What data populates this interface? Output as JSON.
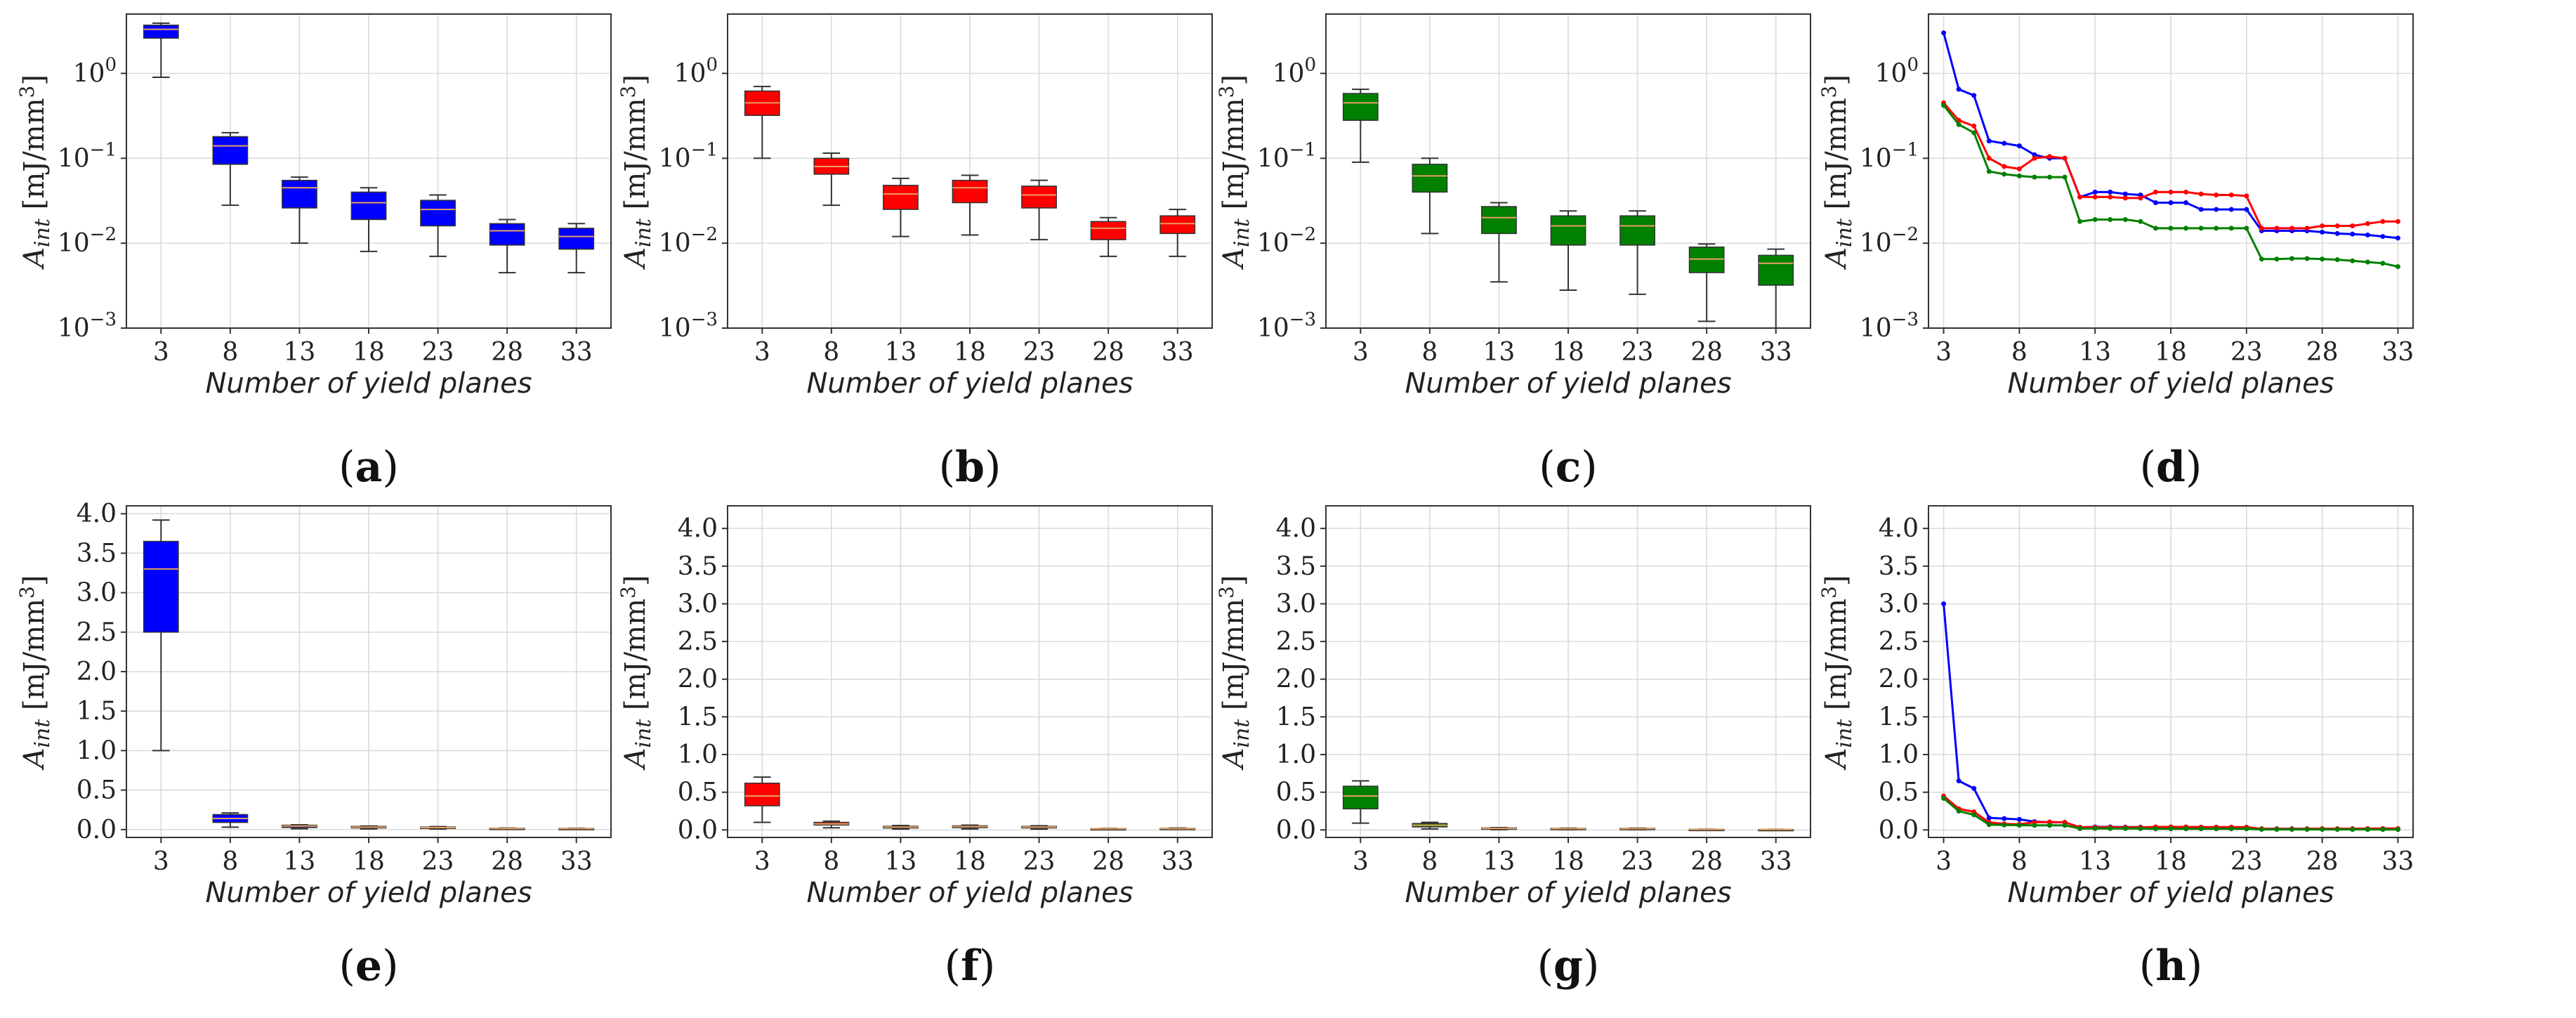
{
  "figure": {
    "captions": [
      "a",
      "b",
      "c",
      "d",
      "e",
      "f",
      "g",
      "h"
    ]
  },
  "chart_data": [
    {
      "id": "a",
      "type": "box",
      "scale": "log",
      "color": "#0000ff",
      "categories": [
        "3",
        "8",
        "13",
        "18",
        "23",
        "28",
        "33"
      ],
      "boxes": [
        {
          "whislo": 0.9,
          "q1": 2.6,
          "med": 3.3,
          "q3": 3.7,
          "whishi": 3.9
        },
        {
          "whislo": 0.028,
          "q1": 0.085,
          "med": 0.14,
          "q3": 0.18,
          "whishi": 0.2
        },
        {
          "whislo": 0.01,
          "q1": 0.026,
          "med": 0.045,
          "q3": 0.055,
          "whishi": 0.06
        },
        {
          "whislo": 0.008,
          "q1": 0.019,
          "med": 0.03,
          "q3": 0.04,
          "whishi": 0.045
        },
        {
          "whislo": 0.007,
          "q1": 0.016,
          "med": 0.025,
          "q3": 0.032,
          "whishi": 0.037
        },
        {
          "whislo": 0.0045,
          "q1": 0.0095,
          "med": 0.014,
          "q3": 0.017,
          "whishi": 0.019
        },
        {
          "whislo": 0.0045,
          "q1": 0.0085,
          "med": 0.012,
          "q3": 0.015,
          "whishi": 0.017
        }
      ],
      "ylim": [
        0.001,
        5
      ],
      "yticks": [
        {
          "v": 0.001,
          "base": "10",
          "exp": "−3"
        },
        {
          "v": 0.01,
          "base": "10",
          "exp": "−2"
        },
        {
          "v": 0.1,
          "base": "10",
          "exp": "−1"
        },
        {
          "v": 1,
          "base": "10",
          "exp": "0"
        }
      ],
      "xlabel": "Number of yield planes",
      "ylabel": {
        "base": "A",
        "sub": "int",
        "unit": "[mJ/mm",
        "sup": "3",
        "close": "]"
      }
    },
    {
      "id": "b",
      "type": "box",
      "scale": "log",
      "color": "#ff0000",
      "categories": [
        "3",
        "8",
        "13",
        "18",
        "23",
        "28",
        "33"
      ],
      "boxes": [
        {
          "whislo": 0.1,
          "q1": 0.32,
          "med": 0.45,
          "q3": 0.62,
          "whishi": 0.7
        },
        {
          "whislo": 0.028,
          "q1": 0.065,
          "med": 0.08,
          "q3": 0.1,
          "whishi": 0.115
        },
        {
          "whislo": 0.012,
          "q1": 0.025,
          "med": 0.038,
          "q3": 0.048,
          "whishi": 0.058
        },
        {
          "whislo": 0.0125,
          "q1": 0.03,
          "med": 0.045,
          "q3": 0.055,
          "whishi": 0.063
        },
        {
          "whislo": 0.011,
          "q1": 0.026,
          "med": 0.037,
          "q3": 0.047,
          "whishi": 0.055
        },
        {
          "whislo": 0.007,
          "q1": 0.011,
          "med": 0.015,
          "q3": 0.018,
          "whishi": 0.02
        },
        {
          "whislo": 0.007,
          "q1": 0.013,
          "med": 0.017,
          "q3": 0.021,
          "whishi": 0.025
        }
      ],
      "ylim": [
        0.001,
        5
      ],
      "yticks": [
        {
          "v": 0.001,
          "base": "10",
          "exp": "−3"
        },
        {
          "v": 0.01,
          "base": "10",
          "exp": "−2"
        },
        {
          "v": 0.1,
          "base": "10",
          "exp": "−1"
        },
        {
          "v": 1,
          "base": "10",
          "exp": "0"
        }
      ],
      "xlabel": "Number of yield planes",
      "ylabel": {
        "base": "A",
        "sub": "int",
        "unit": "[mJ/mm",
        "sup": "3",
        "close": "]"
      }
    },
    {
      "id": "c",
      "type": "box",
      "scale": "log",
      "color": "#008000",
      "categories": [
        "3",
        "8",
        "13",
        "18",
        "23",
        "28",
        "33"
      ],
      "boxes": [
        {
          "whislo": 0.09,
          "q1": 0.28,
          "med": 0.45,
          "q3": 0.58,
          "whishi": 0.65
        },
        {
          "whislo": 0.013,
          "q1": 0.04,
          "med": 0.062,
          "q3": 0.085,
          "whishi": 0.1
        },
        {
          "whislo": 0.0035,
          "q1": 0.013,
          "med": 0.02,
          "q3": 0.027,
          "whishi": 0.03
        },
        {
          "whislo": 0.0028,
          "q1": 0.0095,
          "med": 0.016,
          "q3": 0.021,
          "whishi": 0.024
        },
        {
          "whislo": 0.0025,
          "q1": 0.0095,
          "med": 0.016,
          "q3": 0.021,
          "whishi": 0.024
        },
        {
          "whislo": 0.0012,
          "q1": 0.0045,
          "med": 0.0065,
          "q3": 0.009,
          "whishi": 0.0098
        },
        {
          "whislo": 0.001,
          "q1": 0.0032,
          "med": 0.0058,
          "q3": 0.0072,
          "whishi": 0.0085
        }
      ],
      "ylim": [
        0.001,
        5
      ],
      "yticks": [
        {
          "v": 0.001,
          "base": "10",
          "exp": "−3"
        },
        {
          "v": 0.01,
          "base": "10",
          "exp": "−2"
        },
        {
          "v": 0.1,
          "base": "10",
          "exp": "−1"
        },
        {
          "v": 1,
          "base": "10",
          "exp": "0"
        }
      ],
      "xlabel": "Number of yield planes",
      "ylabel": {
        "base": "A",
        "sub": "int",
        "unit": "[mJ/mm",
        "sup": "3",
        "close": "]"
      }
    },
    {
      "id": "d",
      "type": "line",
      "scale": "log",
      "xlim": [
        2,
        34
      ],
      "xticks": [
        "3",
        "8",
        "13",
        "18",
        "23",
        "28",
        "33"
      ],
      "x": [
        3,
        4,
        5,
        6,
        7,
        8,
        9,
        10,
        11,
        12,
        13,
        14,
        15,
        16,
        17,
        18,
        19,
        20,
        21,
        22,
        23,
        24,
        25,
        26,
        27,
        28,
        29,
        30,
        31,
        32,
        33
      ],
      "series": [
        {
          "name": "blue",
          "color": "#0000ff",
          "values": [
            3.0,
            0.65,
            0.55,
            0.16,
            0.15,
            0.14,
            0.11,
            0.1,
            0.1,
            0.035,
            0.04,
            0.04,
            0.038,
            0.037,
            0.03,
            0.03,
            0.03,
            0.025,
            0.025,
            0.025,
            0.025,
            0.014,
            0.014,
            0.014,
            0.014,
            0.0135,
            0.013,
            0.0128,
            0.0125,
            0.012,
            0.0115
          ]
        },
        {
          "name": "red",
          "color": "#ff0000",
          "values": [
            0.45,
            0.28,
            0.24,
            0.1,
            0.08,
            0.075,
            0.1,
            0.105,
            0.1,
            0.035,
            0.035,
            0.035,
            0.034,
            0.034,
            0.04,
            0.04,
            0.04,
            0.038,
            0.037,
            0.037,
            0.036,
            0.015,
            0.015,
            0.015,
            0.015,
            0.016,
            0.016,
            0.016,
            0.017,
            0.018,
            0.018
          ]
        },
        {
          "name": "green",
          "color": "#008000",
          "values": [
            0.42,
            0.25,
            0.2,
            0.07,
            0.065,
            0.062,
            0.06,
            0.06,
            0.06,
            0.018,
            0.019,
            0.019,
            0.019,
            0.018,
            0.015,
            0.015,
            0.015,
            0.015,
            0.015,
            0.015,
            0.015,
            0.0065,
            0.0065,
            0.0066,
            0.0066,
            0.0065,
            0.0064,
            0.0062,
            0.006,
            0.0058,
            0.0053
          ]
        }
      ],
      "ylim": [
        0.001,
        5
      ],
      "yticks": [
        {
          "v": 0.001,
          "base": "10",
          "exp": "−3"
        },
        {
          "v": 0.01,
          "base": "10",
          "exp": "−2"
        },
        {
          "v": 0.1,
          "base": "10",
          "exp": "−1"
        },
        {
          "v": 1,
          "base": "10",
          "exp": "0"
        }
      ],
      "xlabel": "Number of yield planes",
      "ylabel": {
        "base": "A",
        "sub": "int",
        "unit": "[mJ/mm",
        "sup": "3",
        "close": "]"
      }
    },
    {
      "id": "e",
      "type": "box",
      "scale": "linear",
      "color": "#0000ff",
      "categories": [
        "3",
        "8",
        "13",
        "18",
        "23",
        "28",
        "33"
      ],
      "boxes": [
        {
          "whislo": 1.0,
          "q1": 2.5,
          "med": 3.3,
          "q3": 3.65,
          "whishi": 3.92
        },
        {
          "whislo": 0.03,
          "q1": 0.09,
          "med": 0.14,
          "q3": 0.19,
          "whishi": 0.21
        },
        {
          "whislo": 0.01,
          "q1": 0.026,
          "med": 0.045,
          "q3": 0.055,
          "whishi": 0.06
        },
        {
          "whislo": 0.008,
          "q1": 0.02,
          "med": 0.03,
          "q3": 0.04,
          "whishi": 0.045
        },
        {
          "whislo": 0.007,
          "q1": 0.016,
          "med": 0.025,
          "q3": 0.032,
          "whishi": 0.037
        },
        {
          "whislo": 0.0045,
          "q1": 0.0095,
          "med": 0.014,
          "q3": 0.017,
          "whishi": 0.019
        },
        {
          "whislo": 0.0045,
          "q1": 0.0085,
          "med": 0.012,
          "q3": 0.015,
          "whishi": 0.017
        }
      ],
      "ylim": [
        -0.1,
        4.1
      ],
      "yticks": [
        {
          "v": 0.0,
          "text": "0.0"
        },
        {
          "v": 0.5,
          "text": "0.5"
        },
        {
          "v": 1.0,
          "text": "1.0"
        },
        {
          "v": 1.5,
          "text": "1.5"
        },
        {
          "v": 2.0,
          "text": "2.0"
        },
        {
          "v": 2.5,
          "text": "2.5"
        },
        {
          "v": 3.0,
          "text": "3.0"
        },
        {
          "v": 3.5,
          "text": "3.5"
        },
        {
          "v": 4.0,
          "text": "4.0"
        }
      ],
      "xlabel": "Number of yield planes",
      "ylabel": {
        "base": "A",
        "sub": "int",
        "unit": "[mJ/mm",
        "sup": "3",
        "close": "]"
      }
    },
    {
      "id": "f",
      "type": "box",
      "scale": "linear",
      "color": "#ff0000",
      "categories": [
        "3",
        "8",
        "13",
        "18",
        "23",
        "28",
        "33"
      ],
      "boxes": [
        {
          "whislo": 0.1,
          "q1": 0.32,
          "med": 0.45,
          "q3": 0.62,
          "whishi": 0.7
        },
        {
          "whislo": 0.028,
          "q1": 0.065,
          "med": 0.08,
          "q3": 0.1,
          "whishi": 0.115
        },
        {
          "whislo": 0.012,
          "q1": 0.025,
          "med": 0.038,
          "q3": 0.048,
          "whishi": 0.058
        },
        {
          "whislo": 0.0125,
          "q1": 0.03,
          "med": 0.045,
          "q3": 0.055,
          "whishi": 0.063
        },
        {
          "whislo": 0.011,
          "q1": 0.026,
          "med": 0.037,
          "q3": 0.047,
          "whishi": 0.055
        },
        {
          "whislo": 0.007,
          "q1": 0.011,
          "med": 0.015,
          "q3": 0.018,
          "whishi": 0.02
        },
        {
          "whislo": 0.007,
          "q1": 0.013,
          "med": 0.017,
          "q3": 0.021,
          "whishi": 0.025
        }
      ],
      "ylim": [
        -0.1,
        4.3
      ],
      "yticks": [
        {
          "v": 0.0,
          "text": "0.0"
        },
        {
          "v": 0.5,
          "text": "0.5"
        },
        {
          "v": 1.0,
          "text": "1.0"
        },
        {
          "v": 1.5,
          "text": "1.5"
        },
        {
          "v": 2.0,
          "text": "2.0"
        },
        {
          "v": 2.5,
          "text": "2.5"
        },
        {
          "v": 3.0,
          "text": "3.0"
        },
        {
          "v": 3.5,
          "text": "3.5"
        },
        {
          "v": 4.0,
          "text": "4.0"
        }
      ],
      "xlabel": "Number of yield planes",
      "ylabel": {
        "base": "A",
        "sub": "int",
        "unit": "[mJ/mm",
        "sup": "3",
        "close": "]"
      }
    },
    {
      "id": "g",
      "type": "box",
      "scale": "linear",
      "color": "#008000",
      "categories": [
        "3",
        "8",
        "13",
        "18",
        "23",
        "28",
        "33"
      ],
      "boxes": [
        {
          "whislo": 0.09,
          "q1": 0.28,
          "med": 0.45,
          "q3": 0.58,
          "whishi": 0.65
        },
        {
          "whislo": 0.013,
          "q1": 0.04,
          "med": 0.062,
          "q3": 0.085,
          "whishi": 0.1
        },
        {
          "whislo": 0.0035,
          "q1": 0.013,
          "med": 0.02,
          "q3": 0.027,
          "whishi": 0.03
        },
        {
          "whislo": 0.0028,
          "q1": 0.0095,
          "med": 0.016,
          "q3": 0.021,
          "whishi": 0.024
        },
        {
          "whislo": 0.0025,
          "q1": 0.0095,
          "med": 0.016,
          "q3": 0.021,
          "whishi": 0.024
        },
        {
          "whislo": 0.0012,
          "q1": 0.0045,
          "med": 0.0065,
          "q3": 0.009,
          "whishi": 0.0098
        },
        {
          "whislo": 0.001,
          "q1": 0.0032,
          "med": 0.0058,
          "q3": 0.0072,
          "whishi": 0.0085
        }
      ],
      "ylim": [
        -0.1,
        4.3
      ],
      "yticks": [
        {
          "v": 0.0,
          "text": "0.0"
        },
        {
          "v": 0.5,
          "text": "0.5"
        },
        {
          "v": 1.0,
          "text": "1.0"
        },
        {
          "v": 1.5,
          "text": "1.5"
        },
        {
          "v": 2.0,
          "text": "2.0"
        },
        {
          "v": 2.5,
          "text": "2.5"
        },
        {
          "v": 3.0,
          "text": "3.0"
        },
        {
          "v": 3.5,
          "text": "3.5"
        },
        {
          "v": 4.0,
          "text": "4.0"
        }
      ],
      "xlabel": "Number of yield planes",
      "ylabel": {
        "base": "A",
        "sub": "int",
        "unit": "[mJ/mm",
        "sup": "3",
        "close": "]"
      }
    },
    {
      "id": "h",
      "type": "line",
      "scale": "linear",
      "xlim": [
        2,
        34
      ],
      "xticks": [
        "3",
        "8",
        "13",
        "18",
        "23",
        "28",
        "33"
      ],
      "x": [
        3,
        4,
        5,
        6,
        7,
        8,
        9,
        10,
        11,
        12,
        13,
        14,
        15,
        16,
        17,
        18,
        19,
        20,
        21,
        22,
        23,
        24,
        25,
        26,
        27,
        28,
        29,
        30,
        31,
        32,
        33
      ],
      "series": [
        {
          "name": "blue",
          "color": "#0000ff",
          "values": [
            3.0,
            0.65,
            0.55,
            0.16,
            0.15,
            0.14,
            0.11,
            0.1,
            0.1,
            0.035,
            0.04,
            0.04,
            0.038,
            0.037,
            0.03,
            0.03,
            0.03,
            0.025,
            0.025,
            0.025,
            0.025,
            0.014,
            0.014,
            0.014,
            0.014,
            0.0135,
            0.013,
            0.0128,
            0.0125,
            0.012,
            0.0115
          ]
        },
        {
          "name": "red",
          "color": "#ff0000",
          "values": [
            0.45,
            0.28,
            0.24,
            0.1,
            0.08,
            0.075,
            0.1,
            0.105,
            0.1,
            0.035,
            0.035,
            0.035,
            0.034,
            0.034,
            0.04,
            0.04,
            0.04,
            0.038,
            0.037,
            0.037,
            0.036,
            0.015,
            0.015,
            0.015,
            0.015,
            0.016,
            0.016,
            0.016,
            0.017,
            0.018,
            0.018
          ]
        },
        {
          "name": "green",
          "color": "#008000",
          "values": [
            0.42,
            0.25,
            0.2,
            0.07,
            0.065,
            0.062,
            0.06,
            0.06,
            0.06,
            0.018,
            0.019,
            0.019,
            0.019,
            0.018,
            0.015,
            0.015,
            0.015,
            0.015,
            0.015,
            0.015,
            0.015,
            0.0065,
            0.0065,
            0.0066,
            0.0066,
            0.0065,
            0.0064,
            0.0062,
            0.006,
            0.0058,
            0.0053
          ]
        }
      ],
      "ylim": [
        -0.1,
        4.3
      ],
      "yticks": [
        {
          "v": 0.0,
          "text": "0.0"
        },
        {
          "v": 0.5,
          "text": "0.5"
        },
        {
          "v": 1.0,
          "text": "1.0"
        },
        {
          "v": 1.5,
          "text": "1.5"
        },
        {
          "v": 2.0,
          "text": "2.0"
        },
        {
          "v": 2.5,
          "text": "2.5"
        },
        {
          "v": 3.0,
          "text": "3.0"
        },
        {
          "v": 3.5,
          "text": "3.5"
        },
        {
          "v": 4.0,
          "text": "4.0"
        }
      ],
      "xlabel": "Number of yield planes",
      "ylabel": {
        "base": "A",
        "sub": "int",
        "unit": "[mJ/mm",
        "sup": "3",
        "close": "]"
      }
    }
  ]
}
